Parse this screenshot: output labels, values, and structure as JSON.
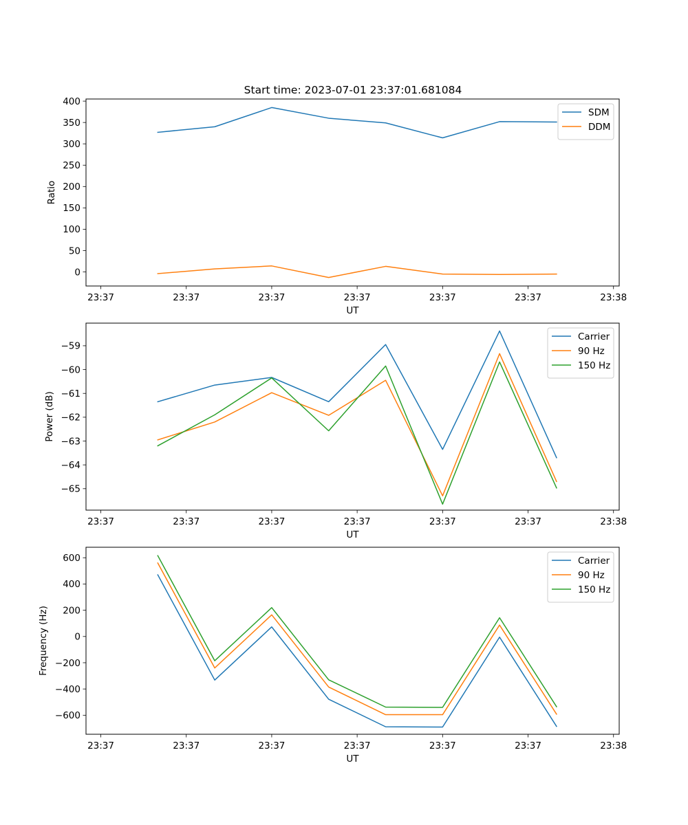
{
  "figure_title": "Start time: 2023-07-01 23:37:01.681084",
  "colors": {
    "c0": "#1f77b4",
    "c1": "#ff7f0e",
    "c2": "#2ca02c"
  },
  "chart_data": [
    {
      "type": "line",
      "title": "Start time: 2023-07-01 23:37:01.681084",
      "xlabel": "UT",
      "ylabel": "Ratio",
      "x": [
        0.5,
        1.0,
        1.5,
        2.0,
        2.5,
        3.0,
        3.5,
        4.0
      ],
      "xlim": [
        -0.13,
        4.55
      ],
      "x_ticks": [
        0,
        0.75,
        1.5,
        2.25,
        3.0,
        3.75,
        4.5
      ],
      "x_tick_labels": [
        "23:37",
        "23:37",
        "23:37",
        "23:37",
        "23:37",
        "23:37",
        "23:38"
      ],
      "ylim": [
        -33,
        405
      ],
      "y_ticks": [
        0,
        50,
        100,
        150,
        200,
        250,
        300,
        350,
        400
      ],
      "y_tick_labels": [
        "0",
        "50",
        "100",
        "150",
        "200",
        "250",
        "300",
        "350",
        "400"
      ],
      "legend": "top-right",
      "series": [
        {
          "name": "SDM",
          "color": "#1f77b4",
          "values": [
            327,
            340,
            385,
            360,
            349,
            314,
            352,
            351
          ]
        },
        {
          "name": "DDM",
          "color": "#ff7f0e",
          "values": [
            -4,
            7,
            14,
            -13,
            13,
            -5,
            -6,
            -5
          ]
        }
      ]
    },
    {
      "type": "line",
      "title": "",
      "xlabel": "UT",
      "ylabel": "Power (dB)",
      "x": [
        0.5,
        1.0,
        1.5,
        2.0,
        2.5,
        3.0,
        3.5,
        4.0
      ],
      "xlim": [
        -0.13,
        4.55
      ],
      "x_ticks": [
        0,
        0.75,
        1.5,
        2.25,
        3.0,
        3.75,
        4.5
      ],
      "x_tick_labels": [
        "23:37",
        "23:37",
        "23:37",
        "23:37",
        "23:37",
        "23:37",
        "23:38"
      ],
      "ylim": [
        -65.9,
        -58.05
      ],
      "y_ticks": [
        -65,
        -64,
        -63,
        -62,
        -61,
        -60,
        -59
      ],
      "y_tick_labels": [
        "−65",
        "−64",
        "−63",
        "−62",
        "−61",
        "−60",
        "−59"
      ],
      "legend": "top-right",
      "series": [
        {
          "name": "Carrier",
          "color": "#1f77b4",
          "values": [
            -61.35,
            -60.65,
            -60.33,
            -61.35,
            -58.95,
            -63.35,
            -58.38,
            -63.7
          ]
        },
        {
          "name": "90 Hz",
          "color": "#ff7f0e",
          "values": [
            -62.95,
            -62.2,
            -60.97,
            -61.92,
            -60.45,
            -65.3,
            -59.33,
            -64.7
          ]
        },
        {
          "name": "150 Hz",
          "color": "#2ca02c",
          "values": [
            -63.2,
            -61.9,
            -60.35,
            -62.57,
            -59.85,
            -65.65,
            -59.68,
            -64.97
          ]
        }
      ]
    },
    {
      "type": "line",
      "title": "",
      "xlabel": "UT",
      "ylabel": "Frequency (Hz)",
      "x": [
        0.5,
        1.0,
        1.5,
        2.0,
        2.5,
        3.0,
        3.5,
        4.0
      ],
      "xlim": [
        -0.13,
        4.55
      ],
      "x_ticks": [
        0,
        0.75,
        1.5,
        2.25,
        3.0,
        3.75,
        4.5
      ],
      "x_tick_labels": [
        "23:37",
        "23:37",
        "23:37",
        "23:37",
        "23:37",
        "23:37",
        "23:38"
      ],
      "ylim": [
        -745,
        680
      ],
      "y_ticks": [
        -600,
        -400,
        -200,
        0,
        200,
        400,
        600
      ],
      "y_tick_labels": [
        "−600",
        "−400",
        "−200",
        "0",
        "200",
        "400",
        "600"
      ],
      "legend": "top-right",
      "series": [
        {
          "name": "Carrier",
          "color": "#1f77b4",
          "values": [
            470,
            -332,
            73,
            -478,
            -688,
            -690,
            -5,
            -685
          ]
        },
        {
          "name": "90 Hz",
          "color": "#ff7f0e",
          "values": [
            560,
            -240,
            165,
            -385,
            -596,
            -596,
            87,
            -592
          ]
        },
        {
          "name": "150 Hz",
          "color": "#2ca02c",
          "values": [
            616,
            -185,
            220,
            -330,
            -538,
            -540,
            143,
            -535
          ]
        }
      ]
    }
  ]
}
